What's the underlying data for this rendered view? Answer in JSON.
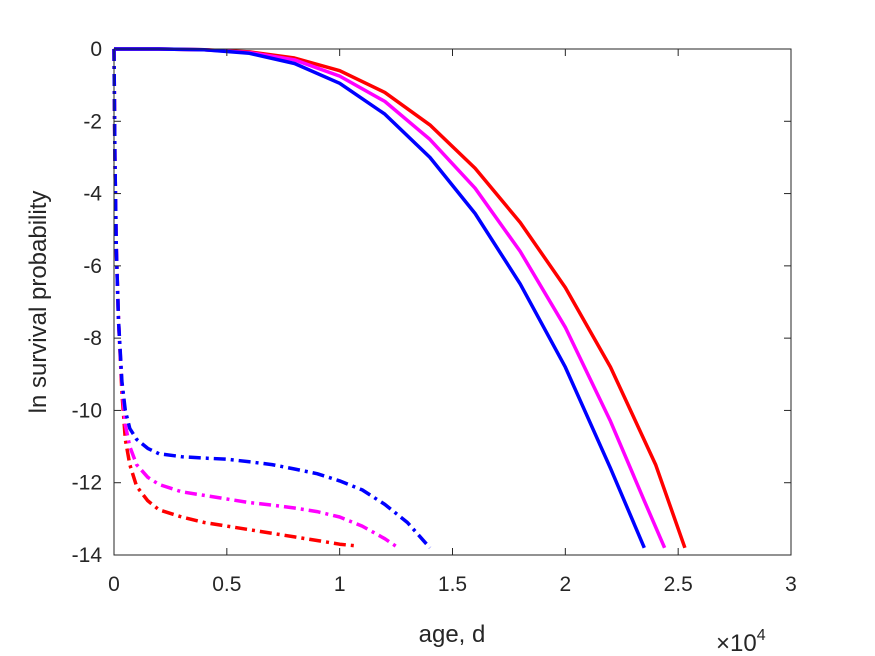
{
  "chart_data": {
    "type": "line",
    "title": "",
    "xlabel": "age, d",
    "ylabel": "ln survival probability",
    "x_exponent_label": {
      "base": "×10",
      "power": "4"
    },
    "xlim": [
      0,
      30000
    ],
    "ylim": [
      -14,
      0
    ],
    "x_ticks": [
      0,
      5000,
      10000,
      15000,
      20000,
      25000,
      30000
    ],
    "x_tick_labels": [
      "0",
      "0.5",
      "1",
      "1.5",
      "2",
      "2.5",
      "3"
    ],
    "y_ticks": [
      0,
      -2,
      -4,
      -6,
      -8,
      -10,
      -12,
      -14
    ],
    "y_tick_labels": [
      "0",
      "-2",
      "-4",
      "-6",
      "-8",
      "-10",
      "-12",
      "-14"
    ],
    "grid": false,
    "box": true,
    "series": [
      {
        "color": "#ff0000",
        "dash": "solid",
        "points": [
          [
            0,
            0
          ],
          [
            2000,
            0
          ],
          [
            4000,
            -0.02
          ],
          [
            6000,
            -0.08
          ],
          [
            8000,
            -0.25
          ],
          [
            10000,
            -0.6
          ],
          [
            12000,
            -1.2
          ],
          [
            14000,
            -2.1
          ],
          [
            16000,
            -3.3
          ],
          [
            18000,
            -4.8
          ],
          [
            20000,
            -6.6
          ],
          [
            22000,
            -8.8
          ],
          [
            24000,
            -11.5
          ],
          [
            25300,
            -13.8
          ]
        ]
      },
      {
        "color": "#ff00ff",
        "dash": "solid",
        "points": [
          [
            0,
            0
          ],
          [
            2000,
            0
          ],
          [
            4000,
            -0.02
          ],
          [
            6000,
            -0.1
          ],
          [
            8000,
            -0.3
          ],
          [
            10000,
            -0.75
          ],
          [
            12000,
            -1.45
          ],
          [
            14000,
            -2.5
          ],
          [
            16000,
            -3.85
          ],
          [
            18000,
            -5.6
          ],
          [
            20000,
            -7.7
          ],
          [
            22000,
            -10.3
          ],
          [
            23500,
            -12.5
          ],
          [
            24400,
            -13.8
          ]
        ]
      },
      {
        "color": "#0000ff",
        "dash": "solid",
        "points": [
          [
            0,
            0
          ],
          [
            2000,
            0
          ],
          [
            4000,
            -0.02
          ],
          [
            6000,
            -0.12
          ],
          [
            8000,
            -0.4
          ],
          [
            10000,
            -0.95
          ],
          [
            12000,
            -1.8
          ],
          [
            14000,
            -3.0
          ],
          [
            16000,
            -4.55
          ],
          [
            18000,
            -6.5
          ],
          [
            20000,
            -8.8
          ],
          [
            22000,
            -11.6
          ],
          [
            23500,
            -13.8
          ]
        ]
      },
      {
        "color": "#ff0000",
        "dash": "dashdot",
        "points": [
          [
            0,
            0
          ],
          [
            40,
            -3
          ],
          [
            100,
            -5.5
          ],
          [
            200,
            -7.5
          ],
          [
            350,
            -9.5
          ],
          [
            500,
            -10.8
          ],
          [
            700,
            -11.5
          ],
          [
            1000,
            -12.1
          ],
          [
            1500,
            -12.5
          ],
          [
            2000,
            -12.75
          ],
          [
            3000,
            -12.95
          ],
          [
            4000,
            -13.1
          ],
          [
            5000,
            -13.2
          ],
          [
            6000,
            -13.3
          ],
          [
            7000,
            -13.4
          ],
          [
            8000,
            -13.5
          ],
          [
            9000,
            -13.6
          ],
          [
            10000,
            -13.7
          ],
          [
            10800,
            -13.75
          ]
        ]
      },
      {
        "color": "#ff00ff",
        "dash": "dashdot",
        "points": [
          [
            0,
            0
          ],
          [
            40,
            -3
          ],
          [
            100,
            -5.5
          ],
          [
            200,
            -7.5
          ],
          [
            350,
            -9.3
          ],
          [
            500,
            -10.4
          ],
          [
            700,
            -11.0
          ],
          [
            1000,
            -11.5
          ],
          [
            1500,
            -11.85
          ],
          [
            2000,
            -12.05
          ],
          [
            3000,
            -12.25
          ],
          [
            4000,
            -12.35
          ],
          [
            5000,
            -12.45
          ],
          [
            6000,
            -12.55
          ],
          [
            7000,
            -12.62
          ],
          [
            8000,
            -12.7
          ],
          [
            9000,
            -12.8
          ],
          [
            10000,
            -12.95
          ],
          [
            11000,
            -13.2
          ],
          [
            12000,
            -13.55
          ],
          [
            12600,
            -13.8
          ]
        ]
      },
      {
        "color": "#0000ff",
        "dash": "dashdot",
        "points": [
          [
            0,
            0
          ],
          [
            40,
            -3
          ],
          [
            100,
            -5.5
          ],
          [
            200,
            -7.5
          ],
          [
            350,
            -9.2
          ],
          [
            500,
            -10.0
          ],
          [
            700,
            -10.5
          ],
          [
            1000,
            -10.8
          ],
          [
            1500,
            -11.05
          ],
          [
            2000,
            -11.2
          ],
          [
            3000,
            -11.28
          ],
          [
            4000,
            -11.32
          ],
          [
            5000,
            -11.35
          ],
          [
            6000,
            -11.42
          ],
          [
            7000,
            -11.5
          ],
          [
            8000,
            -11.62
          ],
          [
            9000,
            -11.75
          ],
          [
            10000,
            -11.95
          ],
          [
            11000,
            -12.2
          ],
          [
            12000,
            -12.6
          ],
          [
            13000,
            -13.1
          ],
          [
            14000,
            -13.8
          ]
        ]
      }
    ]
  }
}
